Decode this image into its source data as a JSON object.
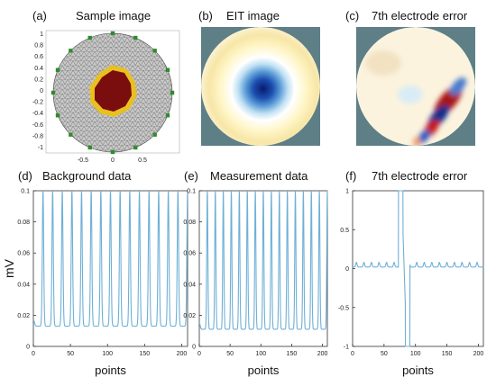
{
  "panels": {
    "a": {
      "letter": "(a)",
      "title": "Sample image",
      "x_ticks": [
        "-0.5",
        "0",
        "0.5"
      ],
      "y_ticks": [
        "1",
        "0.8",
        "0.6",
        "0.4",
        "0.2",
        "0",
        "-0.2",
        "-0.4",
        "-0.6",
        "-0.8",
        "-1"
      ]
    },
    "b": {
      "letter": "(b)",
      "title": "EIT image"
    },
    "c": {
      "letter": "(c)",
      "title": "7th electrode error"
    },
    "d": {
      "letter": "(d)",
      "title": "Background data"
    },
    "e": {
      "letter": "(e)",
      "title": "Measurement data"
    },
    "f": {
      "letter": "(f)",
      "title": "7th electrode error"
    }
  },
  "colors": {
    "trace": "#6fb0d6",
    "mesh_fill": "#c8c8c8",
    "mesh_line": "#555555",
    "inclusion": "#7a0d0d",
    "inclusion_edge": "#e8c020",
    "electrode": "#2e8b2e",
    "map_background": "#5e7f86"
  },
  "chart_data": [
    {
      "panel": "d",
      "type": "line",
      "title": "Background data",
      "xlabel": "points",
      "ylabel": "mV",
      "xlim": [
        0,
        208
      ],
      "ylim": [
        0,
        0.1
      ],
      "x_ticks": [
        "0",
        "50",
        "100",
        "150",
        "200"
      ],
      "y_ticks": [
        "0",
        "0.02",
        "0.04",
        "0.06",
        "0.08",
        "0.1"
      ],
      "peak_x": [
        13,
        26,
        39,
        52,
        65,
        78,
        91,
        104,
        117,
        130,
        143,
        156,
        169,
        182,
        195,
        208
      ],
      "peak_value": 0.096,
      "baseline_value": 0.013
    },
    {
      "panel": "e",
      "type": "line",
      "title": "Measurement data",
      "xlabel": "points",
      "ylabel": "",
      "xlim": [
        0,
        208
      ],
      "ylim": [
        0,
        0.1
      ],
      "x_ticks": [
        "0",
        "50",
        "100",
        "150",
        "200"
      ],
      "y_ticks": [
        "0",
        "0.02",
        "0.04",
        "0.06",
        "0.08",
        "0.1"
      ],
      "peak_x": [
        13,
        26,
        39,
        52,
        65,
        78,
        91,
        104,
        117,
        130,
        143,
        156,
        169,
        182,
        195,
        208
      ],
      "peak_value": 0.096,
      "baseline_value": 0.011
    },
    {
      "panel": "f",
      "type": "line",
      "title": "7th electrode error",
      "xlabel": "points",
      "ylabel": "",
      "xlim": [
        0,
        208
      ],
      "ylim": [
        -1,
        1
      ],
      "x_ticks": [
        "0",
        "50",
        "100",
        "150",
        "200"
      ],
      "y_ticks": [
        "-1",
        "-0.5",
        "0",
        "0.5",
        "1"
      ],
      "baseline_value": 0.02,
      "ripple_peak": 0.08,
      "spike_up_x": [
        73,
        80
      ],
      "spike_down_x": [
        84,
        91
      ]
    }
  ]
}
